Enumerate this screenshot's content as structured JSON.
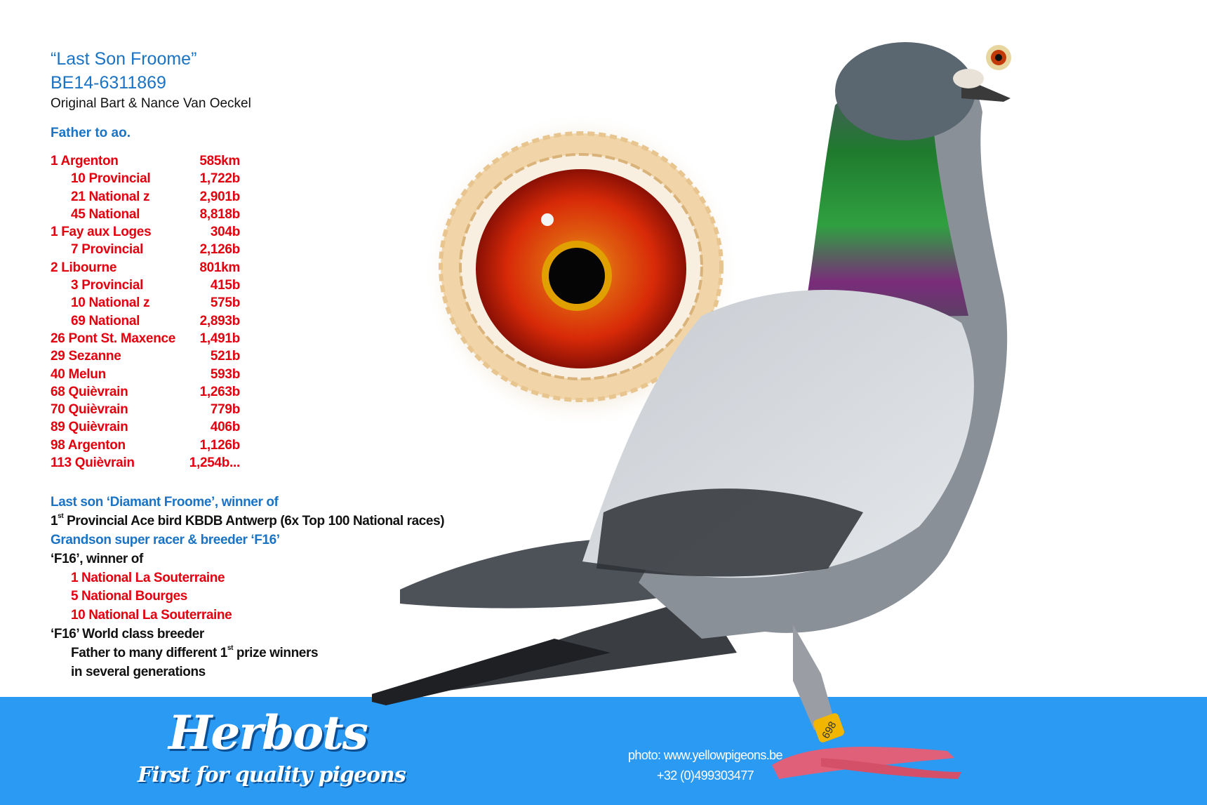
{
  "header": {
    "title": "“Last Son Froome”",
    "ring": "BE14-6311869",
    "origin": "Original Bart & Nance Van Oeckel"
  },
  "father_heading": "Father to ao.",
  "results": [
    {
      "name": "1 Argenton",
      "value": "585km",
      "sub": false
    },
    {
      "name": "10 Provincial",
      "value": "1,722b",
      "sub": true
    },
    {
      "name": "21 National z",
      "value": "2,901b",
      "sub": true
    },
    {
      "name": "45 National",
      "value": "8,818b",
      "sub": true
    },
    {
      "name": "1 Fay aux Loges",
      "value": "304b",
      "sub": false
    },
    {
      "name": "7 Provincial",
      "value": "2,126b",
      "sub": true
    },
    {
      "name": "2 Libourne",
      "value": "801km",
      "sub": false
    },
    {
      "name": "3 Provincial",
      "value": "415b",
      "sub": true
    },
    {
      "name": "10 National z",
      "value": "575b",
      "sub": true
    },
    {
      "name": "69 National",
      "value": "2,893b",
      "sub": true
    },
    {
      "name": "26 Pont St. Maxence",
      "value": "1,491b",
      "sub": false
    },
    {
      "name": "29 Sezanne",
      "value": "521b",
      "sub": false
    },
    {
      "name": "40 Melun",
      "value": "593b",
      "sub": false
    },
    {
      "name": "68 Quièvrain",
      "value": "1,263b",
      "sub": false
    },
    {
      "name": "70 Quièvrain",
      "value": "779b",
      "sub": false
    },
    {
      "name": "89 Quièvrain",
      "value": "406b",
      "sub": false
    },
    {
      "name": "98 Argenton",
      "value": "1,126b",
      "sub": false
    },
    {
      "name": "113 Quièvrain",
      "value": "1,254b...",
      "sub": false
    }
  ],
  "pedigree": {
    "line1": "Last son ‘Diamant Froome’, winner of",
    "line2_num": "1",
    "line2_sup": "st",
    "line2_rest": " Provincial Ace bird KBDB Antwerp (6x Top 100 National races)",
    "line3": "Grandson super racer & breeder ‘F16’",
    "line4": "‘F16’, winner of",
    "wins": [
      "1 National La Souterraine",
      "5 National Bourges",
      "10 National La Souterraine"
    ],
    "line5": "‘F16’ World class breeder",
    "line6_a": "Father to many different 1",
    "line6_sup": "st",
    "line6_b": " prize winners",
    "line7": "in several generations"
  },
  "footer": {
    "logo": "Herbots",
    "tagline": "First for quality pigeons",
    "photo_credit": "photo: www.yellowpigeons.be",
    "phone": "+32 (0)499303477",
    "leg_band": "698"
  },
  "colors": {
    "banner": "#2b9af3",
    "heading_blue": "#1a73c4",
    "result_red": "#e3000f"
  }
}
